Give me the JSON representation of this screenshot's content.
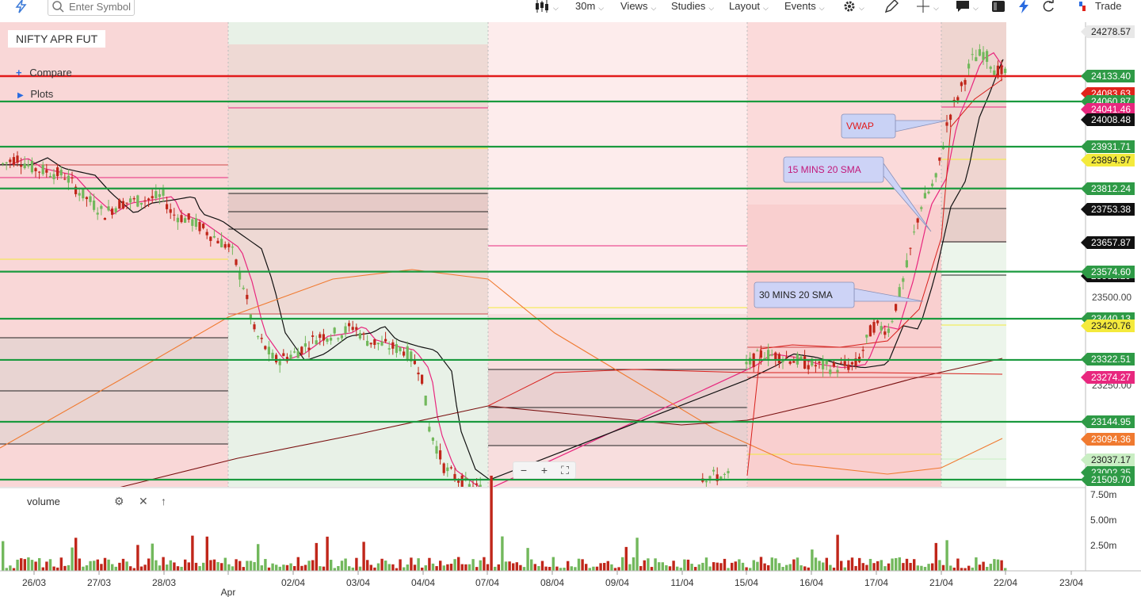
{
  "toolbar": {
    "search_placeholder": "Enter Symbol",
    "interval": "30m",
    "views": "Views",
    "studies": "Studies",
    "layout": "Layout",
    "events": "Events",
    "trade": "Trade"
  },
  "panel": {
    "symbol": "NIFTY APR FUT",
    "compare": "Compare",
    "plots": "Plots",
    "volume_label": "volume"
  },
  "zoom": {
    "minus": "−",
    "plus": "+",
    "fit": "⛶"
  },
  "colors": {
    "up": "#72b85c",
    "down": "#c0261a",
    "level_line": "#1a9a3e",
    "resistance": "#e21a1a",
    "sma15": "#e8277e",
    "sma30": "#111111",
    "vwap": "#d8201c",
    "long_ma": "#7a1010",
    "orange_ma": "#f07a30"
  },
  "chart_data": {
    "type": "candlestick",
    "x_labels": [
      "26/03",
      "27/03",
      "28/03",
      "Apr",
      "02/04",
      "03/04",
      "04/04",
      "07/04",
      "08/04",
      "09/04",
      "11/04",
      "15/04",
      "16/04",
      "17/04",
      "21/04",
      "22/04",
      "23/04"
    ],
    "y_axis_labels": [
      "23500.00",
      "23250.00"
    ],
    "volume_axis_labels": [
      "7.50m",
      "5.00m",
      "2.50m"
    ],
    "green_levels": [
      24060.87,
      23931.71,
      23812.24,
      23574.6,
      23440.13,
      23322.51,
      23144.95,
      21509.7
    ],
    "resistance_level": 24133.4,
    "price_tags": [
      {
        "value": "24278.57",
        "color": "#e8e8e8",
        "text": "#222"
      },
      {
        "value": "24133.40",
        "color": "#2e9a46",
        "text": "#fff"
      },
      {
        "value": "24083.63",
        "color": "#e0231b",
        "text": "#fff"
      },
      {
        "value": "24060.87",
        "color": "#2e9a46",
        "text": "#fff"
      },
      {
        "value": "24041.46",
        "color": "#e8277e",
        "text": "#fff"
      },
      {
        "value": "24008.48",
        "color": "#111111",
        "text": "#fff"
      },
      {
        "value": "23931.71",
        "color": "#2e9a46",
        "text": "#fff"
      },
      {
        "value": "23894.97",
        "color": "#f4ea3c",
        "text": "#222"
      },
      {
        "value": "23812.24",
        "color": "#2e9a46",
        "text": "#fff"
      },
      {
        "value": "23753.38",
        "color": "#111111",
        "text": "#fff"
      },
      {
        "value": "23657.87",
        "color": "#111111",
        "text": "#fff"
      },
      {
        "value": "23582.29",
        "color": "#111111",
        "text": "#fff"
      },
      {
        "value": "23574.60",
        "color": "#2e9a46",
        "text": "#fff"
      },
      {
        "value": "23440.13",
        "color": "#2e9a46",
        "text": "#fff"
      },
      {
        "value": "23420.76",
        "color": "#f4ea3c",
        "text": "#222"
      },
      {
        "value": "23322.51",
        "color": "#2e9a46",
        "text": "#fff"
      },
      {
        "value": "23274.27",
        "color": "#e8277e",
        "text": "#fff"
      },
      {
        "value": "23144.95",
        "color": "#2e9a46",
        "text": "#fff"
      },
      {
        "value": "23094.36",
        "color": "#f07a30",
        "text": "#fff"
      },
      {
        "value": "23037.17",
        "color": "#c9eec3",
        "text": "#222"
      },
      {
        "value": "23002.35",
        "color": "#2e9a46",
        "text": "#fff"
      },
      {
        "value": "21509.70",
        "color": "#2e9a46",
        "text": "#fff"
      }
    ],
    "annotations": [
      {
        "text": "VWAP",
        "color": "#e21a1a"
      },
      {
        "text": "15 MINS 20 SMA",
        "color": "#c2187a"
      },
      {
        "text": "30 MINS 20 SMA",
        "color": "#222222"
      }
    ]
  }
}
